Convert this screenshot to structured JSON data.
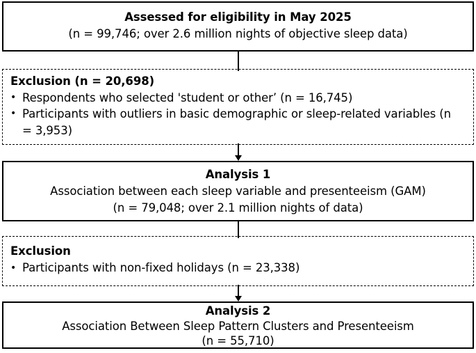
{
  "diagram": {
    "background_color": "#ffffff",
    "border_color": "#000000",
    "text_color": "#000000",
    "boxes": [
      {
        "id": "eligibility",
        "style": "solid",
        "title": "Assessed for eligibility in May 2025",
        "lines": [
          "(n = 99,746; over 2.6 million nights of objective sleep data)"
        ]
      },
      {
        "id": "exclusion-1",
        "style": "dashed",
        "title": "Exclusion (n = 20,698)",
        "bullets": [
          "Respondents who selected 'student or other’ (n = 16,745)",
          "Participants with outliers in basic demographic or sleep-related variables (n = 3,953)"
        ]
      },
      {
        "id": "analysis-1",
        "style": "solid",
        "title": "Analysis 1",
        "lines": [
          "Association between each sleep variable and presenteeism (GAM)",
          "(n = 79,048; over 2.1 million nights of data)"
        ]
      },
      {
        "id": "exclusion-2",
        "style": "dashed",
        "title": "Exclusion",
        "bullets": [
          "Participants with non-fixed holidays (n = 23,338)"
        ]
      },
      {
        "id": "analysis-2",
        "style": "solid",
        "title": "Analysis 2",
        "lines": [
          "Association Between Sleep Pattern Clusters and Presenteeism",
          "(n = 55,710)"
        ]
      }
    ],
    "connectors": [
      {
        "from": "eligibility",
        "to": "exclusion-1",
        "arrow": false
      },
      {
        "from": "exclusion-1",
        "to": "analysis-1",
        "arrow": true
      },
      {
        "from": "analysis-1",
        "to": "exclusion-2",
        "arrow": false
      },
      {
        "from": "exclusion-2",
        "to": "analysis-2",
        "arrow": true
      }
    ]
  }
}
